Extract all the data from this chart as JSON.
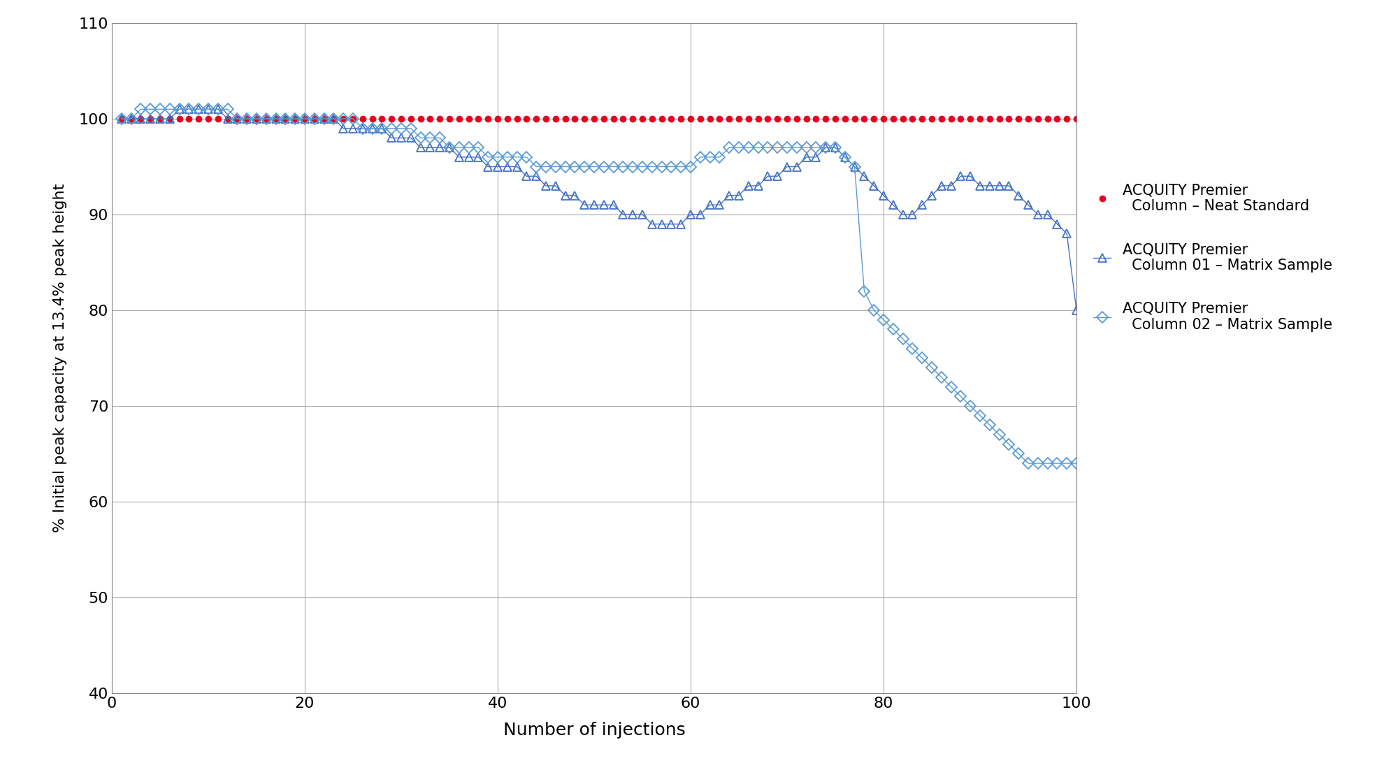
{
  "title": "",
  "xlabel": "Number of injections",
  "ylabel": "% Initial peak capacity at 13.4% peak height",
  "xlim": [
    0,
    100
  ],
  "ylim": [
    40,
    110
  ],
  "yticks": [
    40,
    50,
    60,
    70,
    80,
    90,
    100,
    110
  ],
  "xticks": [
    0,
    20,
    40,
    60,
    80,
    100
  ],
  "background_color": "#ffffff",
  "grid_color": "#aaaaaa",
  "series_neat": {
    "label": "ACQUITY Premier\n  Column – Neat Standard",
    "color": "#e8001c",
    "marker": "o",
    "x": [
      1,
      2,
      3,
      4,
      5,
      6,
      7,
      8,
      9,
      10,
      11,
      12,
      13,
      14,
      15,
      16,
      17,
      18,
      19,
      20,
      21,
      22,
      23,
      24,
      25,
      26,
      27,
      28,
      29,
      30,
      31,
      32,
      33,
      34,
      35,
      36,
      37,
      38,
      39,
      40,
      41,
      42,
      43,
      44,
      45,
      46,
      47,
      48,
      49,
      50,
      51,
      52,
      53,
      54,
      55,
      56,
      57,
      58,
      59,
      60,
      61,
      62,
      63,
      64,
      65,
      66,
      67,
      68,
      69,
      70,
      71,
      72,
      73,
      74,
      75,
      76,
      77,
      78,
      79,
      80,
      81,
      82,
      83,
      84,
      85,
      86,
      87,
      88,
      89,
      90,
      91,
      92,
      93,
      94,
      95,
      96,
      97,
      98,
      99,
      100
    ],
    "y": [
      100,
      100,
      100,
      100,
      100,
      100,
      100,
      100,
      100,
      100,
      100,
      100,
      100,
      100,
      100,
      100,
      100,
      100,
      100,
      100,
      100,
      100,
      100,
      100,
      100,
      100,
      100,
      100,
      100,
      100,
      100,
      100,
      100,
      100,
      100,
      100,
      100,
      100,
      100,
      100,
      100,
      100,
      100,
      100,
      100,
      100,
      100,
      100,
      100,
      100,
      100,
      100,
      100,
      100,
      100,
      100,
      100,
      100,
      100,
      100,
      100,
      100,
      100,
      100,
      100,
      100,
      100,
      100,
      100,
      100,
      100,
      100,
      100,
      100,
      100,
      100,
      100,
      100,
      100,
      100,
      100,
      100,
      100,
      100,
      100,
      100,
      100,
      100,
      100,
      100,
      100,
      100,
      100,
      100,
      100,
      100,
      100,
      100,
      100,
      100
    ]
  },
  "series_col01": {
    "label": "ACQUITY Premier\n  Column 01 – Matrix Sample",
    "color": "#4472c4",
    "marker": "^",
    "x": [
      1,
      2,
      3,
      4,
      5,
      6,
      7,
      8,
      9,
      10,
      11,
      12,
      13,
      14,
      15,
      16,
      17,
      18,
      19,
      20,
      21,
      22,
      23,
      24,
      25,
      26,
      27,
      28,
      29,
      30,
      31,
      32,
      33,
      34,
      35,
      36,
      37,
      38,
      39,
      40,
      41,
      42,
      43,
      44,
      45,
      46,
      47,
      48,
      49,
      50,
      51,
      52,
      53,
      54,
      55,
      56,
      57,
      58,
      59,
      60,
      61,
      62,
      63,
      64,
      65,
      66,
      67,
      68,
      69,
      70,
      71,
      72,
      73,
      74,
      75,
      76,
      77,
      78,
      79,
      80,
      81,
      82,
      83,
      84,
      85,
      86,
      87,
      88,
      89,
      90,
      91,
      92,
      93,
      94,
      95,
      96,
      97,
      98,
      99,
      100
    ],
    "y": [
      100,
      100,
      100,
      100,
      100,
      100,
      101,
      101,
      101,
      101,
      101,
      100,
      100,
      100,
      100,
      100,
      100,
      100,
      100,
      100,
      100,
      100,
      100,
      99,
      99,
      99,
      99,
      99,
      98,
      98,
      98,
      97,
      97,
      97,
      97,
      96,
      96,
      96,
      95,
      95,
      95,
      95,
      94,
      94,
      93,
      93,
      92,
      92,
      91,
      91,
      91,
      91,
      90,
      90,
      90,
      89,
      89,
      89,
      89,
      90,
      90,
      91,
      91,
      92,
      92,
      93,
      93,
      94,
      94,
      95,
      95,
      96,
      96,
      97,
      97,
      96,
      95,
      94,
      93,
      92,
      91,
      90,
      90,
      91,
      92,
      93,
      93,
      94,
      94,
      93,
      93,
      93,
      93,
      92,
      91,
      90,
      90,
      89,
      88,
      80
    ]
  },
  "series_col02": {
    "label": "ACQUITY Premier\n  Column 02 – Matrix Sample",
    "color": "#5b9bd5",
    "marker": "D",
    "x": [
      1,
      2,
      3,
      4,
      5,
      6,
      7,
      8,
      9,
      10,
      11,
      12,
      13,
      14,
      15,
      16,
      17,
      18,
      19,
      20,
      21,
      22,
      23,
      24,
      25,
      26,
      27,
      28,
      29,
      30,
      31,
      32,
      33,
      34,
      35,
      36,
      37,
      38,
      39,
      40,
      41,
      42,
      43,
      44,
      45,
      46,
      47,
      48,
      49,
      50,
      51,
      52,
      53,
      54,
      55,
      56,
      57,
      58,
      59,
      60,
      61,
      62,
      63,
      64,
      65,
      66,
      67,
      68,
      69,
      70,
      71,
      72,
      73,
      74,
      75,
      76,
      77,
      78,
      79,
      80,
      81,
      82,
      83,
      84,
      85,
      86,
      87,
      88,
      89,
      90,
      91,
      92,
      93,
      94,
      95,
      96,
      97,
      98,
      99,
      100
    ],
    "y": [
      100,
      100,
      101,
      101,
      101,
      101,
      101,
      101,
      101,
      101,
      101,
      101,
      100,
      100,
      100,
      100,
      100,
      100,
      100,
      100,
      100,
      100,
      100,
      100,
      100,
      99,
      99,
      99,
      99,
      99,
      99,
      98,
      98,
      98,
      97,
      97,
      97,
      97,
      96,
      96,
      96,
      96,
      96,
      95,
      95,
      95,
      95,
      95,
      95,
      95,
      95,
      95,
      95,
      95,
      95,
      95,
      95,
      95,
      95,
      95,
      96,
      96,
      96,
      97,
      97,
      97,
      97,
      97,
      97,
      97,
      97,
      97,
      97,
      97,
      97,
      96,
      95,
      82,
      80,
      79,
      78,
      77,
      76,
      75,
      74,
      73,
      72,
      71,
      70,
      69,
      68,
      67,
      66,
      65,
      64,
      64,
      64,
      64,
      64,
      64
    ]
  },
  "legend_label_neat": "ACQUITY Premier\n  Column – Neat Standard",
  "legend_label_col01": "ACQUITY Premier\n  Column 01 – Matrix Sample",
  "legend_label_col02": "ACQUITY Premier\n  Column 02 – Matrix Sample"
}
